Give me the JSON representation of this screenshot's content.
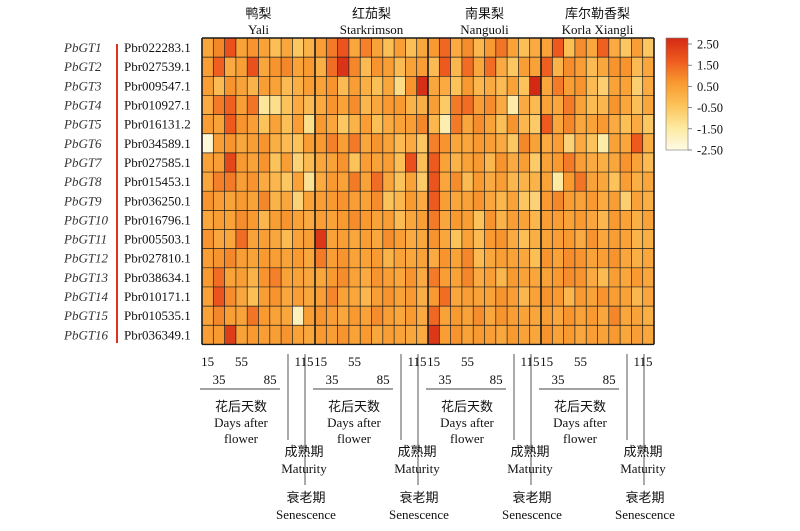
{
  "chart_data": {
    "type": "heatmap",
    "title": "",
    "genes": [
      "PbGT1",
      "PbGT2",
      "PbGT3",
      "PbGT4",
      "PbGT5",
      "PbGT6",
      "PbGT7",
      "PbGT8",
      "PbGT9",
      "PbGT10",
      "PbGT11",
      "PbGT12",
      "PbGT13",
      "PbGT14",
      "PbGT15",
      "PbGT16"
    ],
    "accessions": [
      "Pbr022283.1",
      "Pbr027539.1",
      "Pbr009547.1",
      "Pbr010927.1",
      "Pbr016131.2",
      "Pbr034589.1",
      "Pbr027585.1",
      "Pbr015453.1",
      "Pbr036250.1",
      "Pbr016796.1",
      "Pbr005503.1",
      "Pbr027810.1",
      "Pbr038634.1",
      "Pbr010171.1",
      "Pbr010535.1",
      "Pbr036349.1"
    ],
    "cultivars": [
      {
        "zh": "鸭梨",
        "en": "Yali"
      },
      {
        "zh": "红茄梨",
        "en": "Starkrimson"
      },
      {
        "zh": "南果梨",
        "en": "Nanguoli"
      },
      {
        "zh": "库尔勒香梨",
        "en": "Korla Xiangli"
      }
    ],
    "columns_per_cultivar": 10,
    "tick_labels_top": [
      "15",
      "55",
      "115"
    ],
    "tick_labels_bottom": [
      "35",
      "85"
    ],
    "stage_labels": [
      {
        "zh": "花后天数",
        "en_line1": "Days after",
        "en_line2": "flower"
      },
      {
        "zh": "成熟期",
        "en": "Maturity"
      },
      {
        "zh": "衰老期",
        "en": "Senescence"
      }
    ],
    "colorbar": {
      "ticks": [
        "2.50",
        "1.50",
        "0.50",
        "-0.50",
        "-1.50",
        "-2.50"
      ],
      "range": [
        -2.5,
        2.5
      ],
      "colors": [
        "#fffbe6",
        "#fde9a0",
        "#fcc35a",
        "#f89a30",
        "#ee5a1e",
        "#d42a15"
      ]
    },
    "values": [
      [
        0.2,
        0.8,
        1.7,
        0.3,
        0.6,
        0.3,
        -0.4,
        0.2,
        -0.6,
        -0.1,
        0.4,
        1.0,
        1.6,
        0.2,
        0.9,
        0.3,
        -0.4,
        0.4,
        -0.4,
        0.2,
        0.5,
        1.3,
        0.1,
        0.7,
        -0.2,
        0.5,
        1.1,
        0.3,
        -0.4,
        0.1,
        0.3,
        1.5,
        -0.4,
        0.7,
        0.2,
        1.4,
        0.1,
        -0.6,
        0.4,
        -0.6
      ],
      [
        0.4,
        1.4,
        0.1,
        0.4,
        1.7,
        0.2,
        0.6,
        0.8,
        0.3,
        0.5,
        0.0,
        1.2,
        2.3,
        0.8,
        -0.3,
        0.6,
        0.4,
        -0.3,
        0.3,
        0.4,
        -0.3,
        1.5,
        -0.2,
        1.2,
        0.2,
        1.2,
        0.1,
        -0.6,
        0.4,
        0.3,
        1.4,
        -0.1,
        0.7,
        0.4,
        -0.3,
        0.2,
        0.6,
        0.6,
        -0.3,
        0.2
      ],
      [
        0.4,
        -0.3,
        0.6,
        0.3,
        -0.1,
        0.4,
        0.3,
        -0.3,
        0.0,
        0.4,
        0.3,
        0.6,
        -0.3,
        0.4,
        0.0,
        -0.4,
        0.2,
        -1.1,
        0.6,
        2.4,
        0.2,
        0.1,
        -0.5,
        0.5,
        -0.2,
        0.1,
        -0.3,
        0.3,
        -0.5,
        2.5,
        0.2,
        1.0,
        0.4,
        0.6,
        -0.3,
        -0.8,
        0.3,
        0.3,
        -0.8,
        0.1
      ],
      [
        0.1,
        1.0,
        1.4,
        0.4,
        1.1,
        -1.4,
        -1.2,
        -0.5,
        0.1,
        -0.3,
        0.1,
        0.6,
        0.3,
        0.7,
        -0.2,
        0.2,
        0.5,
        0.5,
        -0.1,
        0.0,
        0.4,
        -0.7,
        1.0,
        1.2,
        0.4,
        0.7,
        0.1,
        -1.6,
        0.1,
        -0.3,
        0.3,
        0.2,
        1.0,
        0.3,
        -0.3,
        -0.2,
        0.6,
        0.2,
        -0.4,
        0.2
      ],
      [
        0.4,
        0.3,
        1.5,
        0.6,
        0.4,
        -0.5,
        0.3,
        -0.4,
        0.4,
        -1.2,
        0.5,
        0.2,
        -0.6,
        -0.1,
        0.4,
        -0.4,
        0.1,
        0.3,
        0.4,
        0.8,
        -0.2,
        -1.7,
        1.0,
        0.2,
        0.7,
        0.3,
        -0.4,
        0.6,
        -0.2,
        -0.7,
        1.5,
        0.2,
        0.8,
        0.2,
        0.3,
        0.5,
        0.1,
        -0.4,
        0.1,
        -0.6
      ],
      [
        -2.3,
        0.4,
        0.6,
        0.2,
        0.4,
        0.6,
        0.0,
        -0.3,
        -0.5,
        0.4,
        0.5,
        0.9,
        0.4,
        1.0,
        0.2,
        0.6,
        0.3,
        -0.3,
        0.1,
        -0.6,
        0.9,
        0.6,
        0.2,
        0.2,
        0.5,
        0.4,
        0.1,
        -0.6,
        0.8,
        0.3,
        0.1,
        0.4,
        -0.9,
        0.1,
        -0.5,
        -1.6,
        0.3,
        0.2,
        1.5,
        0.0
      ],
      [
        0.3,
        0.4,
        1.9,
        0.5,
        0.3,
        0.6,
        -0.5,
        0.4,
        -0.9,
        -0.3,
        0.2,
        0.3,
        0.6,
        -0.5,
        0.4,
        0.3,
        0.4,
        -0.4,
        1.7,
        -0.4,
        1.5,
        0.3,
        -0.1,
        0.3,
        0.5,
        -0.2,
        0.6,
        0.1,
        0.4,
        -0.7,
        0.3,
        0.5,
        1.0,
        0.4,
        0.1,
        0.0,
        0.2,
        0.6,
        0.3,
        -0.3
      ],
      [
        0.2,
        0.9,
        1.0,
        0.4,
        0.6,
        0.1,
        -0.2,
        -0.6,
        0.3,
        -1.3,
        0.1,
        0.5,
        0.3,
        1.0,
        0.3,
        1.2,
        0.2,
        -0.5,
        0.3,
        -0.7,
        1.6,
        0.2,
        0.7,
        -0.3,
        0.5,
        0.1,
        0.4,
        -0.2,
        -0.1,
        -0.1,
        0.3,
        -1.5,
        0.5,
        1.1,
        0.3,
        0.2,
        -0.5,
        0.4,
        0.0,
        0.2
      ],
      [
        0.6,
        0.4,
        0.3,
        0.5,
        0.3,
        0.8,
        -0.1,
        0.2,
        -0.9,
        0.3,
        0.4,
        0.5,
        0.6,
        0.4,
        0.3,
        0.7,
        -0.5,
        -0.2,
        0.5,
        0.1,
        1.5,
        0.4,
        0.2,
        0.3,
        0.6,
        0.2,
        -0.2,
        0.3,
        -0.6,
        -0.9,
        0.5,
        0.8,
        0.4,
        0.3,
        0.5,
        0.1,
        0.4,
        -0.8,
        0.3,
        0.0
      ],
      [
        0.2,
        0.4,
        0.3,
        0.7,
        0.5,
        -0.2,
        0.4,
        0.6,
        0.3,
        0.1,
        0.4,
        0.3,
        0.5,
        0.7,
        0.5,
        0.3,
        0.4,
        -0.3,
        0.2,
        0.4,
        1.0,
        0.2,
        0.5,
        0.4,
        -0.5,
        0.6,
        -0.1,
        0.4,
        0.3,
        -0.2,
        0.4,
        0.4,
        0.3,
        0.5,
        0.2,
        -0.2,
        0.5,
        0.3,
        0.0,
        0.3
      ],
      [
        0.6,
        0.2,
        0.2,
        1.2,
        0.3,
        0.4,
        0.2,
        -0.3,
        0.3,
        0.4,
        2.2,
        0.3,
        0.4,
        0.2,
        0.4,
        0.2,
        0.7,
        0.4,
        0.1,
        0.2,
        0.6,
        0.2,
        -0.5,
        0.3,
        -0.3,
        0.5,
        0.6,
        0.1,
        -0.4,
        0.0,
        0.3,
        0.4,
        0.5,
        0.1,
        0.6,
        0.2,
        0.4,
        0.3,
        -0.1,
        0.0
      ],
      [
        0.4,
        0.6,
        0.8,
        0.4,
        0.3,
        0.5,
        0.4,
        0.3,
        0.5,
        0.2,
        1.0,
        0.4,
        0.6,
        0.3,
        0.3,
        0.5,
        -0.1,
        0.3,
        0.2,
        0.3,
        0.1,
        0.6,
        0.3,
        0.8,
        -0.3,
        0.2,
        0.4,
        0.3,
        0.2,
        -0.4,
        0.6,
        0.3,
        0.7,
        0.6,
        0.3,
        0.4,
        0.6,
        0.2,
        0.0,
        0.2
      ],
      [
        0.5,
        1.2,
        0.3,
        0.4,
        -0.1,
        0.6,
        0.9,
        0.3,
        0.3,
        0.2,
        0.2,
        0.5,
        0.7,
        0.3,
        0.1,
        0.6,
        0.4,
        0.2,
        0.6,
        0.1,
        1.0,
        0.4,
        0.3,
        0.8,
        0.1,
        0.4,
        -0.2,
        0.5,
        0.3,
        0.2,
        0.3,
        0.5,
        0.7,
        0.6,
        0.1,
        -0.3,
        0.4,
        0.2,
        0.5,
        0.2
      ],
      [
        0.3,
        1.6,
        0.7,
        0.2,
        -0.4,
        0.4,
        0.6,
        0.2,
        0.4,
        0.2,
        0.4,
        0.8,
        0.3,
        0.2,
        -0.2,
        0.4,
        0.6,
        0.3,
        0.5,
        0.0,
        0.5,
        1.2,
        0.2,
        0.4,
        0.3,
        0.3,
        0.6,
        0.4,
        -0.2,
        0.3,
        0.6,
        0.5,
        -0.2,
        0.5,
        0.3,
        0.6,
        0.4,
        0.3,
        -0.2,
        0.2
      ],
      [
        0.3,
        0.8,
        0.4,
        0.3,
        1.1,
        0.5,
        0.3,
        0.2,
        -1.9,
        0.4,
        0.6,
        0.4,
        0.2,
        0.5,
        0.3,
        0.7,
        0.4,
        0.2,
        0.5,
        0.1,
        1.3,
        0.3,
        0.5,
        0.3,
        0.7,
        0.2,
        0.6,
        0.4,
        0.3,
        0.2,
        0.4,
        0.2,
        0.6,
        0.3,
        0.5,
        0.2,
        0.8,
        0.2,
        0.3,
        0.0
      ],
      [
        0.4,
        0.5,
        2.1,
        0.3,
        0.5,
        0.4,
        0.4,
        0.6,
        0.3,
        0.2,
        0.5,
        0.4,
        0.6,
        0.3,
        0.5,
        0.2,
        0.4,
        0.3,
        0.2,
        0.1,
        2.2,
        0.4,
        0.6,
        0.3,
        0.5,
        0.4,
        0.2,
        0.5,
        0.3,
        0.2,
        0.6,
        0.3,
        0.5,
        0.2,
        0.4,
        0.3,
        0.5,
        0.2,
        0.4,
        0.2
      ]
    ]
  }
}
